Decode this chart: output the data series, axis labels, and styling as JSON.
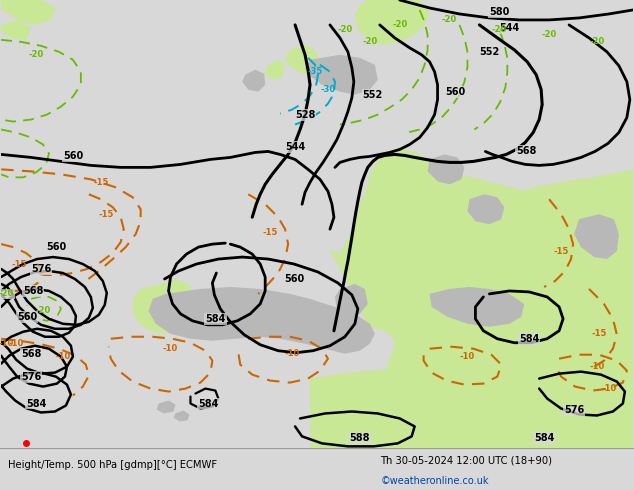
{
  "title_left": "Height/Temp. 500 hPa [gdmp][°C] ECMWF",
  "title_right": "Th 30-05-2024 12:00 UTC (18+90)",
  "credit": "©weatheronline.co.uk",
  "bg_color": "#d8d8d8",
  "land_green_color": "#c8e896",
  "land_gray_color": "#b8b8b8",
  "sea_color": "#d8d8d8",
  "height_line_color": "#000000",
  "temp_warm_color": "#cc6600",
  "temp_cold_color": "#00aacc",
  "temp_green_color": "#66bb00",
  "fig_width": 6.34,
  "fig_height": 4.9,
  "dpi": 100,
  "bottom_bar_color": "#e8e8e8",
  "bottom_text_color": "#000000",
  "credit_color": "#0044aa"
}
